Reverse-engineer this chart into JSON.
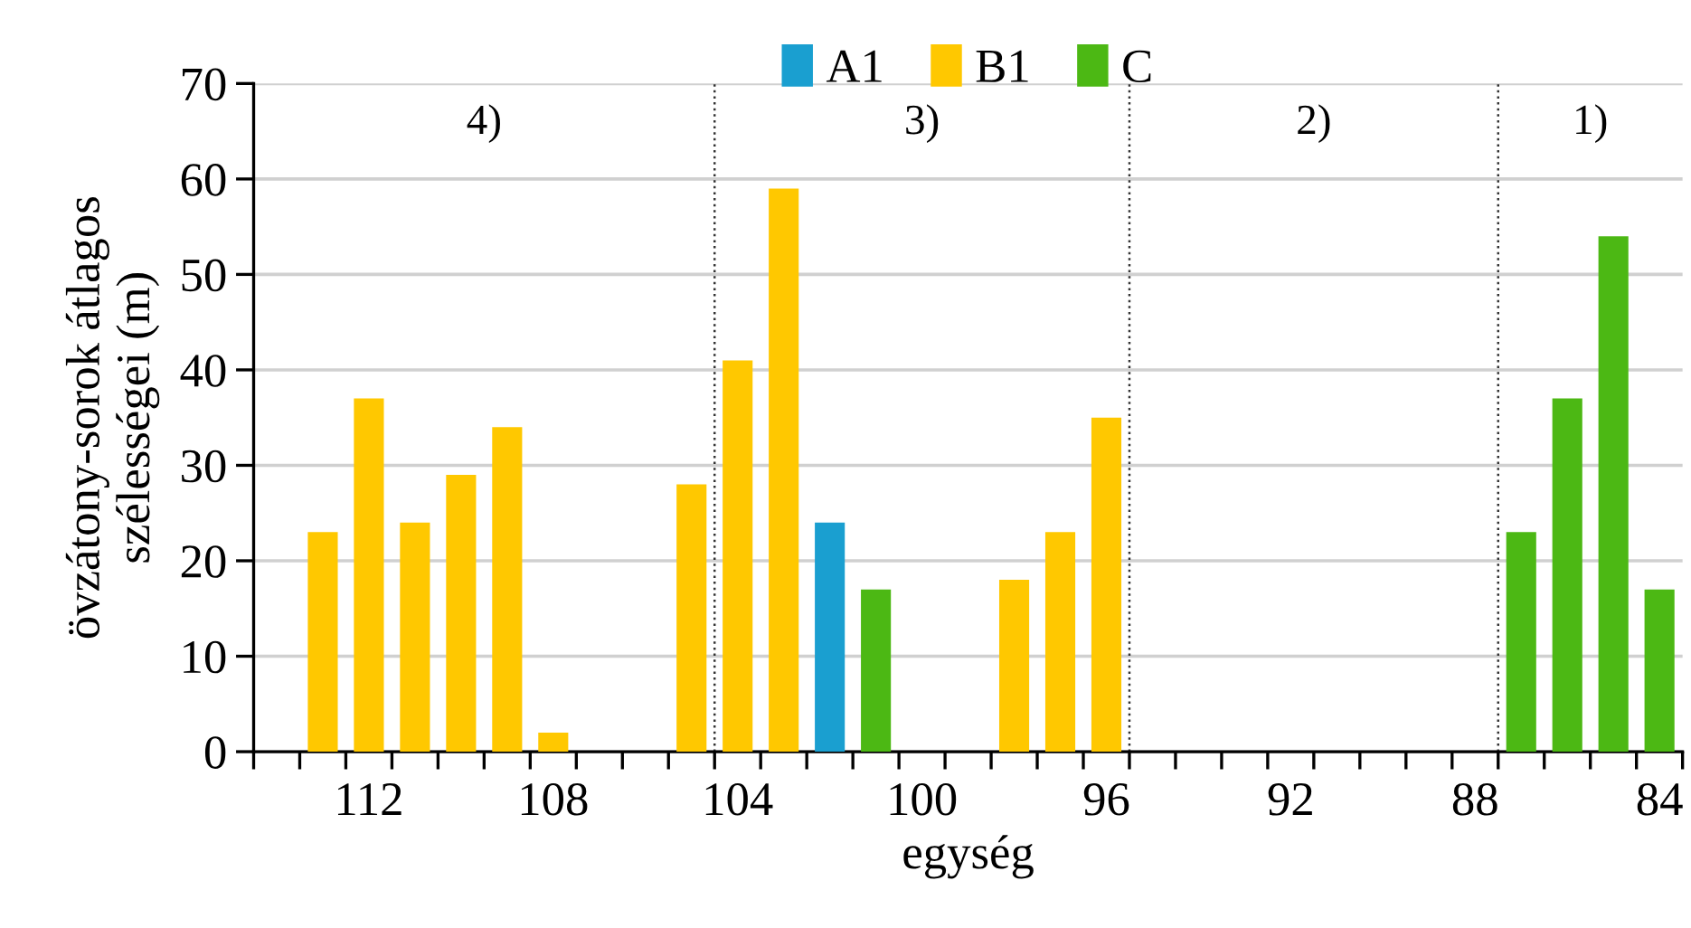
{
  "chart_data": {
    "type": "bar",
    "xlabel": "egység",
    "ylabel": "övzátony-sorok átlagos\nszélességei (m)",
    "x": [
      113,
      112,
      111,
      110,
      109,
      108,
      107,
      106,
      105,
      104,
      103,
      102,
      101,
      100,
      99,
      98,
      97,
      96,
      95,
      94,
      93,
      92,
      91,
      90,
      89,
      88,
      87,
      86,
      85,
      84
    ],
    "series": [
      {
        "name": "A1",
        "color": "#1a9fd0",
        "values": [
          null,
          null,
          null,
          null,
          null,
          null,
          null,
          null,
          null,
          null,
          null,
          24,
          null,
          null,
          null,
          null,
          null,
          null,
          null,
          null,
          null,
          null,
          null,
          null,
          null,
          null,
          null,
          null,
          null,
          null
        ]
      },
      {
        "name": "B1",
        "color": "#ffc800",
        "values": [
          23,
          37,
          24,
          29,
          34,
          2,
          null,
          null,
          28,
          41,
          59,
          null,
          null,
          null,
          null,
          18,
          23,
          35,
          null,
          null,
          null,
          null,
          null,
          null,
          null,
          null,
          null,
          null,
          null,
          null
        ]
      },
      {
        "name": "C",
        "color": "#4cb814",
        "values": [
          null,
          null,
          null,
          null,
          null,
          null,
          null,
          null,
          null,
          null,
          null,
          null,
          17,
          null,
          null,
          null,
          null,
          null,
          null,
          null,
          null,
          null,
          null,
          null,
          null,
          null,
          23,
          37,
          54,
          17
        ]
      }
    ],
    "xlim": [
      114.5,
      83.5
    ],
    "xticks": [
      {
        "value": 112,
        "label": "112"
      },
      {
        "value": 108,
        "label": "108"
      },
      {
        "value": 104,
        "label": "104"
      },
      {
        "value": 100,
        "label": "100"
      },
      {
        "value": 96,
        "label": "96"
      },
      {
        "value": 92,
        "label": "92"
      },
      {
        "value": 88,
        "label": "88"
      },
      {
        "value": 84,
        "label": "84"
      },
      {
        "value": 114.5,
        "label": null
      },
      {
        "value": 113.5,
        "label": null
      },
      {
        "value": 112.5,
        "label": null
      },
      {
        "value": 111.5,
        "label": null
      },
      {
        "value": 110.5,
        "label": null
      },
      {
        "value": 109.5,
        "label": null
      },
      {
        "value": 108.5,
        "label": null
      },
      {
        "value": 107.5,
        "label": null
      },
      {
        "value": 106.5,
        "label": null
      },
      {
        "value": 105.5,
        "label": null
      },
      {
        "value": 104.5,
        "label": null
      },
      {
        "value": 103.5,
        "label": null
      },
      {
        "value": 102.5,
        "label": null
      },
      {
        "value": 101.5,
        "label": null
      },
      {
        "value": 100.5,
        "label": null
      },
      {
        "value": 99.5,
        "label": null
      },
      {
        "value": 98.5,
        "label": null
      },
      {
        "value": 97.5,
        "label": null
      },
      {
        "value": 96.5,
        "label": null
      },
      {
        "value": 95.5,
        "label": null
      },
      {
        "value": 94.5,
        "label": null
      },
      {
        "value": 93.5,
        "label": null
      },
      {
        "value": 92.5,
        "label": null
      },
      {
        "value": 91.5,
        "label": null
      },
      {
        "value": 90.5,
        "label": null
      },
      {
        "value": 89.5,
        "label": null
      },
      {
        "value": 88.5,
        "label": null
      },
      {
        "value": 87.5,
        "label": null
      },
      {
        "value": 86.5,
        "label": null
      },
      {
        "value": 85.5,
        "label": null
      },
      {
        "value": 84.5,
        "label": null
      },
      {
        "value": 83.5,
        "label": null
      }
    ],
    "ylim": [
      0,
      70
    ],
    "yticks": [
      0,
      10,
      20,
      30,
      40,
      50,
      60,
      70
    ],
    "ref_lines": [
      {
        "axis": "x",
        "value": 104.5,
        "line_style": "dotted",
        "color": "#333333"
      },
      {
        "axis": "x",
        "value": 95.5,
        "line_style": "dotted",
        "color": "#333333"
      },
      {
        "axis": "x",
        "value": 87.5,
        "line_style": "dotted",
        "color": "#333333"
      }
    ],
    "annotations": [
      "4)",
      "3)",
      "2)",
      "1)"
    ],
    "grid": "y",
    "legend": "top"
  }
}
